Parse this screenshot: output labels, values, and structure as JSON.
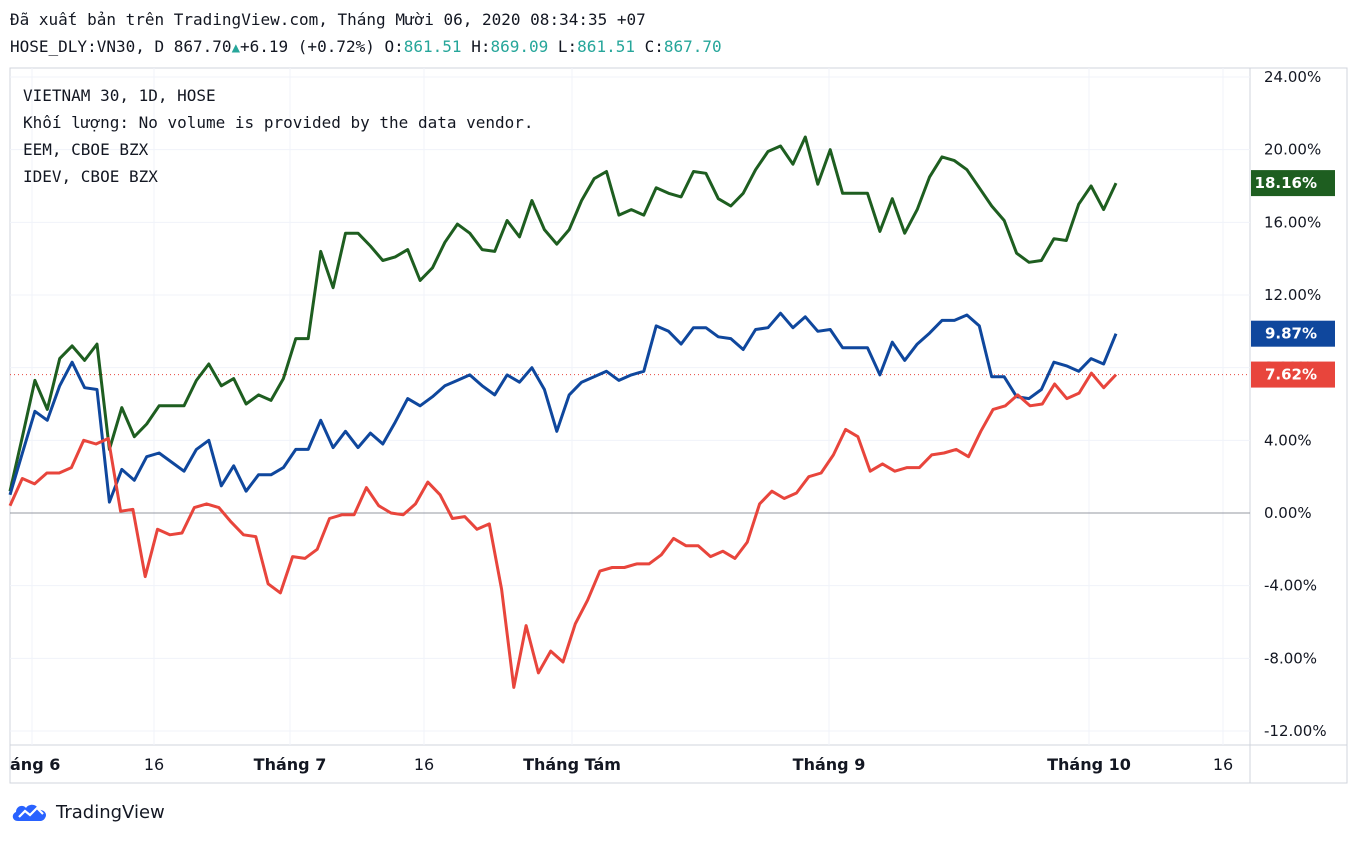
{
  "header": {
    "published": "Đã xuất bản trên TradingView.com, Tháng Mười 06, 2020 08:34:35 +07",
    "symbol": "HOSE_DLY:VN30, D",
    "price": "867.70",
    "change": "+6.19 (+0.72%)",
    "o_label": "O:",
    "o_value": "861.51",
    "h_label": "H:",
    "h_value": "869.09",
    "l_label": "L:",
    "l_value": "861.51",
    "c_label": "C:",
    "c_value": "867.70"
  },
  "legend": [
    "VIETNAM 30, 1D, HOSE",
    "Khối lượng: No volume is provided by the data vendor.",
    "EEM, CBOE BZX",
    "IDEV, CBOE BZX"
  ],
  "brand": {
    "name": "TradingView",
    "icon": "tradingview-cloud-logo-icon"
  },
  "colors": {
    "green": "#1e5e20",
    "blue": "#0f479d",
    "red": "#e8453c",
    "grid": "#f0f3fa"
  },
  "chart_data": {
    "type": "line",
    "y_unit": "%",
    "ylim": [
      -12,
      24
    ],
    "y_ticks": [
      "24.00%",
      "20.00%",
      "16.00%",
      "12.00%",
      "8.00%",
      "4.00%",
      "0.00%",
      "-4.00%",
      "-8.00%",
      "-12.00%"
    ],
    "y_tick_values": [
      24,
      20,
      16,
      12,
      8,
      4,
      0,
      -4,
      -8,
      -12
    ],
    "x_labels": [
      "áng 6",
      "16",
      "Tháng 7",
      "16",
      "Tháng Tám",
      "Tháng 9",
      "Tháng 10",
      "16"
    ],
    "grid": true,
    "series": [
      {
        "color": "#1e5e20",
        "last_label": "18.16%",
        "values": [
          1.2,
          4.2,
          7.3,
          5.7,
          8.5,
          9.2,
          8.4,
          9.3,
          3.5,
          5.8,
          4.2,
          4.9,
          5.9,
          5.9,
          5.9,
          7.3,
          8.2,
          7.0,
          7.4,
          6.0,
          6.5,
          6.2,
          7.4,
          9.6,
          9.6,
          14.4,
          12.4,
          15.4,
          15.4,
          14.7,
          13.9,
          14.1,
          14.5,
          12.8,
          13.5,
          14.9,
          15.9,
          15.4,
          14.5,
          14.4,
          16.1,
          15.2,
          17.2,
          15.6,
          14.8,
          15.6,
          17.2,
          18.4,
          18.8,
          16.4,
          16.7,
          16.4,
          17.9,
          17.6,
          17.4,
          18.8,
          18.7,
          17.3,
          16.9,
          17.6,
          18.9,
          19.9,
          20.2,
          19.2,
          20.7,
          18.1,
          20.0,
          17.6,
          17.6,
          17.6,
          15.5,
          17.3,
          15.4,
          16.7,
          18.5,
          19.6,
          19.4,
          18.9,
          17.9,
          16.9,
          16.1,
          14.3,
          13.8,
          13.9,
          15.1,
          15.0,
          17.0,
          18.0,
          16.7,
          18.16
        ]
      },
      {
        "color": "#0f479d",
        "last_label": "9.87%",
        "values": [
          1.0,
          3.3,
          5.6,
          5.1,
          7.0,
          8.3,
          6.9,
          6.8,
          0.6,
          2.4,
          1.8,
          3.1,
          3.3,
          2.8,
          2.3,
          3.5,
          4.0,
          1.5,
          2.6,
          1.2,
          2.1,
          2.1,
          2.5,
          3.5,
          3.5,
          5.1,
          3.6,
          4.5,
          3.6,
          4.4,
          3.8,
          5.0,
          6.3,
          5.9,
          6.4,
          7.0,
          7.3,
          7.6,
          7.0,
          6.5,
          7.6,
          7.2,
          8.0,
          6.8,
          4.5,
          6.5,
          7.2,
          7.5,
          7.8,
          7.3,
          7.6,
          7.8,
          10.3,
          10.0,
          9.3,
          10.2,
          10.2,
          9.7,
          9.6,
          9.0,
          10.1,
          10.2,
          11.0,
          10.2,
          10.8,
          10.0,
          10.1,
          9.1,
          9.1,
          9.1,
          7.6,
          9.4,
          8.4,
          9.3,
          9.9,
          10.6,
          10.6,
          10.9,
          10.3,
          7.5,
          7.5,
          6.4,
          6.3,
          6.8,
          8.3,
          8.1,
          7.8,
          8.5,
          8.2,
          9.87
        ]
      },
      {
        "color": "#e8453c",
        "last_label": "7.62%",
        "values": [
          0.4,
          1.9,
          1.6,
          2.2,
          2.2,
          2.5,
          4.0,
          3.8,
          4.1,
          0.1,
          0.2,
          -3.5,
          -0.9,
          -1.2,
          -1.1,
          0.3,
          0.5,
          0.3,
          -0.5,
          -1.2,
          -1.3,
          -3.9,
          -4.4,
          -2.4,
          -2.5,
          -2.0,
          -0.3,
          -0.1,
          -0.1,
          1.4,
          0.4,
          0.0,
          -0.1,
          0.5,
          1.7,
          1.0,
          -0.3,
          -0.2,
          -0.9,
          -0.6,
          -4.2,
          -9.6,
          -6.2,
          -8.8,
          -7.6,
          -8.2,
          -6.1,
          -4.8,
          -3.2,
          -3.0,
          -3.0,
          -2.8,
          -2.8,
          -2.3,
          -1.4,
          -1.8,
          -1.8,
          -2.4,
          -2.1,
          -2.5,
          -1.6,
          0.5,
          1.2,
          0.8,
          1.1,
          2.0,
          2.2,
          3.2,
          4.6,
          4.2,
          2.3,
          2.7,
          2.3,
          2.5,
          2.5,
          3.2,
          3.3,
          3.5,
          3.1,
          4.5,
          5.7,
          5.9,
          6.5,
          5.9,
          6.0,
          7.1,
          6.3,
          6.6,
          7.7,
          6.9,
          7.62
        ]
      }
    ]
  }
}
